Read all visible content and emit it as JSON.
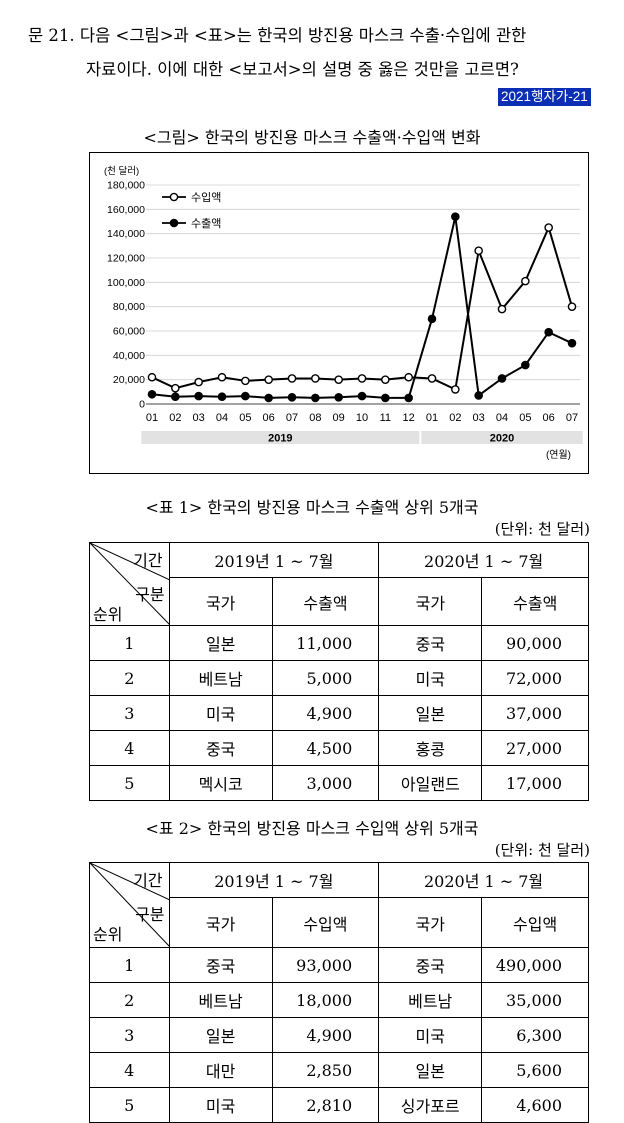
{
  "question": {
    "line1": "문 21. 다음 <그림>과 <표>는 한국의 방진용 마스크 수출·수입에 관한",
    "line2": "자료이다. 이에 대한 <보고서>의 설명 중 옳은 것만을 고르면?",
    "tag": "2021행자가-21"
  },
  "figure": {
    "title": "<그림> 한국의 방진용 마스크 수출액·수입액 변화",
    "unit_label": "(천 달러)",
    "x_unit_label": "(연월)",
    "legend": {
      "import": "수입액",
      "export": "수출액",
      "placement": "top-left"
    }
  },
  "chart_data": {
    "type": "line",
    "categories": [
      "01",
      "02",
      "03",
      "04",
      "05",
      "06",
      "07",
      "08",
      "09",
      "10",
      "11",
      "12",
      "01",
      "02",
      "03",
      "04",
      "05",
      "06",
      "07"
    ],
    "year_groups": [
      {
        "label": "2019",
        "from": 0,
        "to": 11
      },
      {
        "label": "2020",
        "from": 12,
        "to": 18
      }
    ],
    "series": [
      {
        "name": "수입액",
        "marker": "open-circle",
        "values": [
          22000,
          13000,
          18000,
          22000,
          19000,
          20000,
          21000,
          21000,
          20000,
          21000,
          20000,
          22000,
          21000,
          12000,
          126000,
          78000,
          101000,
          145000,
          80000
        ]
      },
      {
        "name": "수출액",
        "marker": "filled-circle",
        "values": [
          8000,
          6000,
          6500,
          6000,
          6500,
          5000,
          5500,
          5000,
          5500,
          6500,
          5000,
          5000,
          70000,
          154000,
          7000,
          21000,
          32000,
          59000,
          50000
        ]
      }
    ],
    "yticks": [
      "180,000",
      "160,000",
      "140,000",
      "120,000",
      "100,000",
      "80,000",
      "60,000",
      "40,000",
      "20,000",
      "0"
    ],
    "ylim": [
      0,
      180000
    ],
    "grid": "horizontal",
    "ylabel": "(천 달러)",
    "xlabel": "(연월)"
  },
  "table1": {
    "title": "<표 1> 한국의 방진용 마스크 수출액 상위 5개국",
    "unit": "(단위: 천 달러)",
    "corner": {
      "period": "기간",
      "category": "구분",
      "rank": "순위"
    },
    "period_2019": "2019년 1 ~ 7월",
    "period_2020": "2020년 1 ~ 7월",
    "col_country": "국가",
    "col_value": "수출액",
    "rows": [
      {
        "rank": "1",
        "c2019": "일본",
        "v2019": "11,000",
        "c2020": "중국",
        "v2020": "90,000"
      },
      {
        "rank": "2",
        "c2019": "베트남",
        "v2019": "5,000",
        "c2020": "미국",
        "v2020": "72,000"
      },
      {
        "rank": "3",
        "c2019": "미국",
        "v2019": "4,900",
        "c2020": "일본",
        "v2020": "37,000"
      },
      {
        "rank": "4",
        "c2019": "중국",
        "v2019": "4,500",
        "c2020": "홍콩",
        "v2020": "27,000"
      },
      {
        "rank": "5",
        "c2019": "멕시코",
        "v2019": "3,000",
        "c2020": "아일랜드",
        "v2020": "17,000"
      }
    ]
  },
  "table2": {
    "title": "<표 2> 한국의 방진용 마스크 수입액 상위 5개국",
    "unit": "(단위: 천 달러)",
    "corner": {
      "period": "기간",
      "category": "구분",
      "rank": "순위"
    },
    "period_2019": "2019년 1 ~ 7월",
    "period_2020": "2020년 1 ~ 7월",
    "col_country": "국가",
    "col_value": "수입액",
    "rows": [
      {
        "rank": "1",
        "c2019": "중국",
        "v2019": "93,000",
        "c2020": "중국",
        "v2020": "490,000"
      },
      {
        "rank": "2",
        "c2019": "베트남",
        "v2019": "18,000",
        "c2020": "베트남",
        "v2020": "35,000"
      },
      {
        "rank": "3",
        "c2019": "일본",
        "v2019": "4,900",
        "c2020": "미국",
        "v2020": "6,300"
      },
      {
        "rank": "4",
        "c2019": "대만",
        "v2019": "2,850",
        "c2020": "일본",
        "v2020": "5,600"
      },
      {
        "rank": "5",
        "c2019": "미국",
        "v2019": "2,810",
        "c2020": "싱가포르",
        "v2020": "4,600"
      }
    ]
  }
}
